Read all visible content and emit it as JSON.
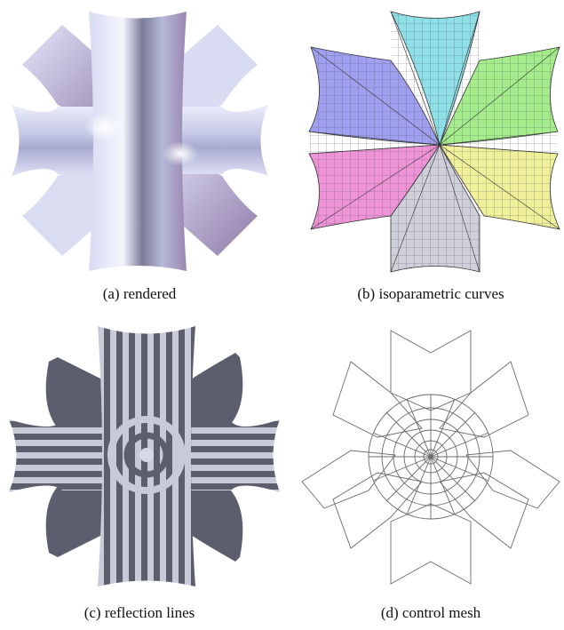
{
  "figure": {
    "panels": [
      {
        "id": "a",
        "caption": "(a) rendered"
      },
      {
        "id": "b",
        "caption": "(b) isoparametric curves"
      },
      {
        "id": "c",
        "caption": "(c) reflection lines"
      },
      {
        "id": "d",
        "caption": "(d) control mesh"
      }
    ],
    "colors": {
      "surface_light": "#e6e8f8",
      "surface_mid": "#9ea3c8",
      "surface_dark": "#5a5a72",
      "purple_tint": "#a08ab4",
      "iso_cyan": "#8ee0e6",
      "iso_green": "#a4ec8c",
      "iso_yellow": "#f0f09a",
      "iso_gray": "#c8c8d0",
      "iso_pink": "#ee94d6",
      "iso_blue": "#a0a0f0",
      "stripe_dark": "#5c5e6e",
      "stripe_light": "#c8cad8",
      "mesh_line": "#6a6a6a"
    }
  }
}
